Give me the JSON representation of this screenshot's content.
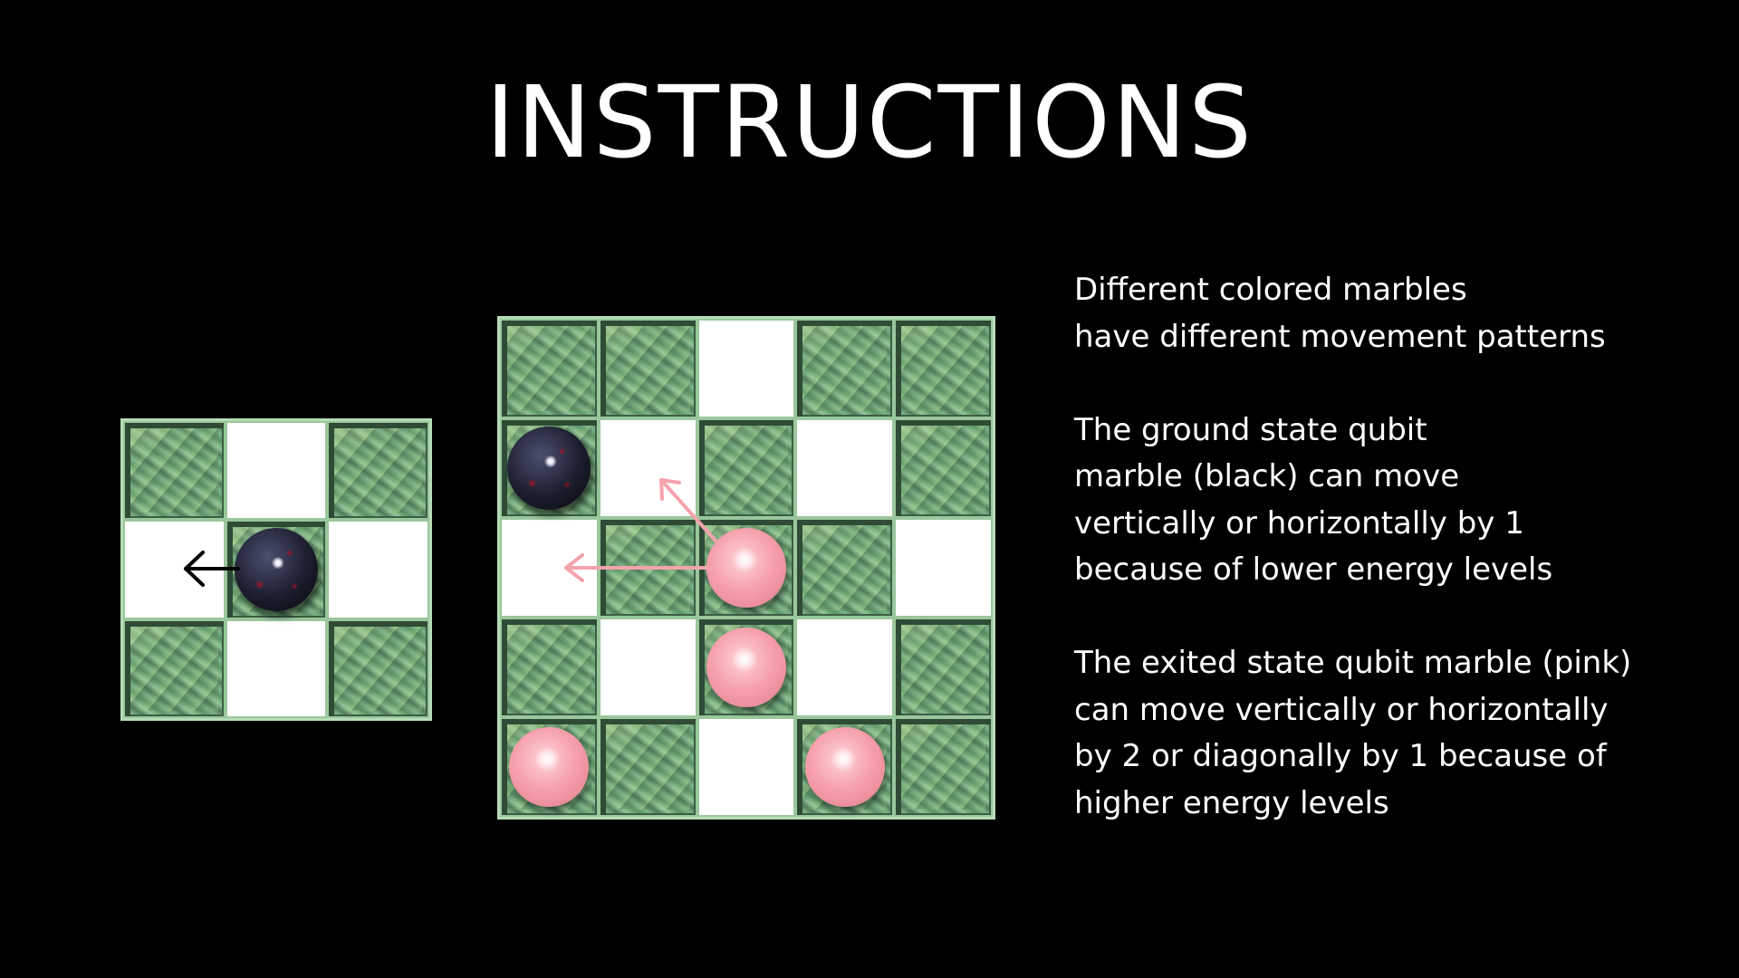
{
  "title": "INSTRUCTIONS",
  "paragraphs": [
    {
      "lines": [
        "Different colored marbles",
        "have different movement patterns"
      ]
    },
    {
      "lines": [
        "The ground state qubit",
        "marble (black) can move",
        "vertically or horizontally by 1",
        "because of lower energy levels"
      ]
    },
    {
      "lines": [
        "The exited state qubit marble (pink)",
        "can move vertically or horizontally",
        "by 2 or diagonally by 1 because of",
        "higher energy levels"
      ]
    }
  ],
  "boards": {
    "small": {
      "grid": [
        [
          "grass",
          "white",
          "grass"
        ],
        [
          "white",
          "grass",
          "white"
        ],
        [
          "grass",
          "white",
          "grass"
        ]
      ],
      "marbles": [
        {
          "color": "black",
          "row": 1,
          "col": 1
        }
      ],
      "arrow_color": "#000000"
    },
    "large": {
      "grid": [
        [
          "grass",
          "grass",
          "white",
          "grass",
          "grass"
        ],
        [
          "grass",
          "white",
          "grass",
          "white",
          "grass"
        ],
        [
          "white",
          "grass",
          "grass",
          "grass",
          "white"
        ],
        [
          "grass",
          "white",
          "grass",
          "white",
          "grass"
        ],
        [
          "grass",
          "grass",
          "white",
          "grass",
          "grass"
        ]
      ],
      "marbles": [
        {
          "color": "black",
          "row": 1,
          "col": 0
        },
        {
          "color": "pink",
          "row": 2,
          "col": 2
        },
        {
          "color": "pink",
          "row": 3,
          "col": 2
        },
        {
          "color": "pink",
          "row": 4,
          "col": 0
        },
        {
          "color": "pink",
          "row": 4,
          "col": 3
        }
      ],
      "arrow_color": "#f4a3ad"
    }
  },
  "colors": {
    "background": "#000000",
    "text": "#ffffff",
    "board_frame": "#b5dcb6",
    "pink_marble": "#f6a3ae",
    "black_marble": "#1c1d2e"
  },
  "icons": {
    "black_arrow": "arrow-left-icon",
    "pink_arrows": [
      "arrow-left-icon",
      "arrow-diagonal-up-left-icon"
    ]
  }
}
